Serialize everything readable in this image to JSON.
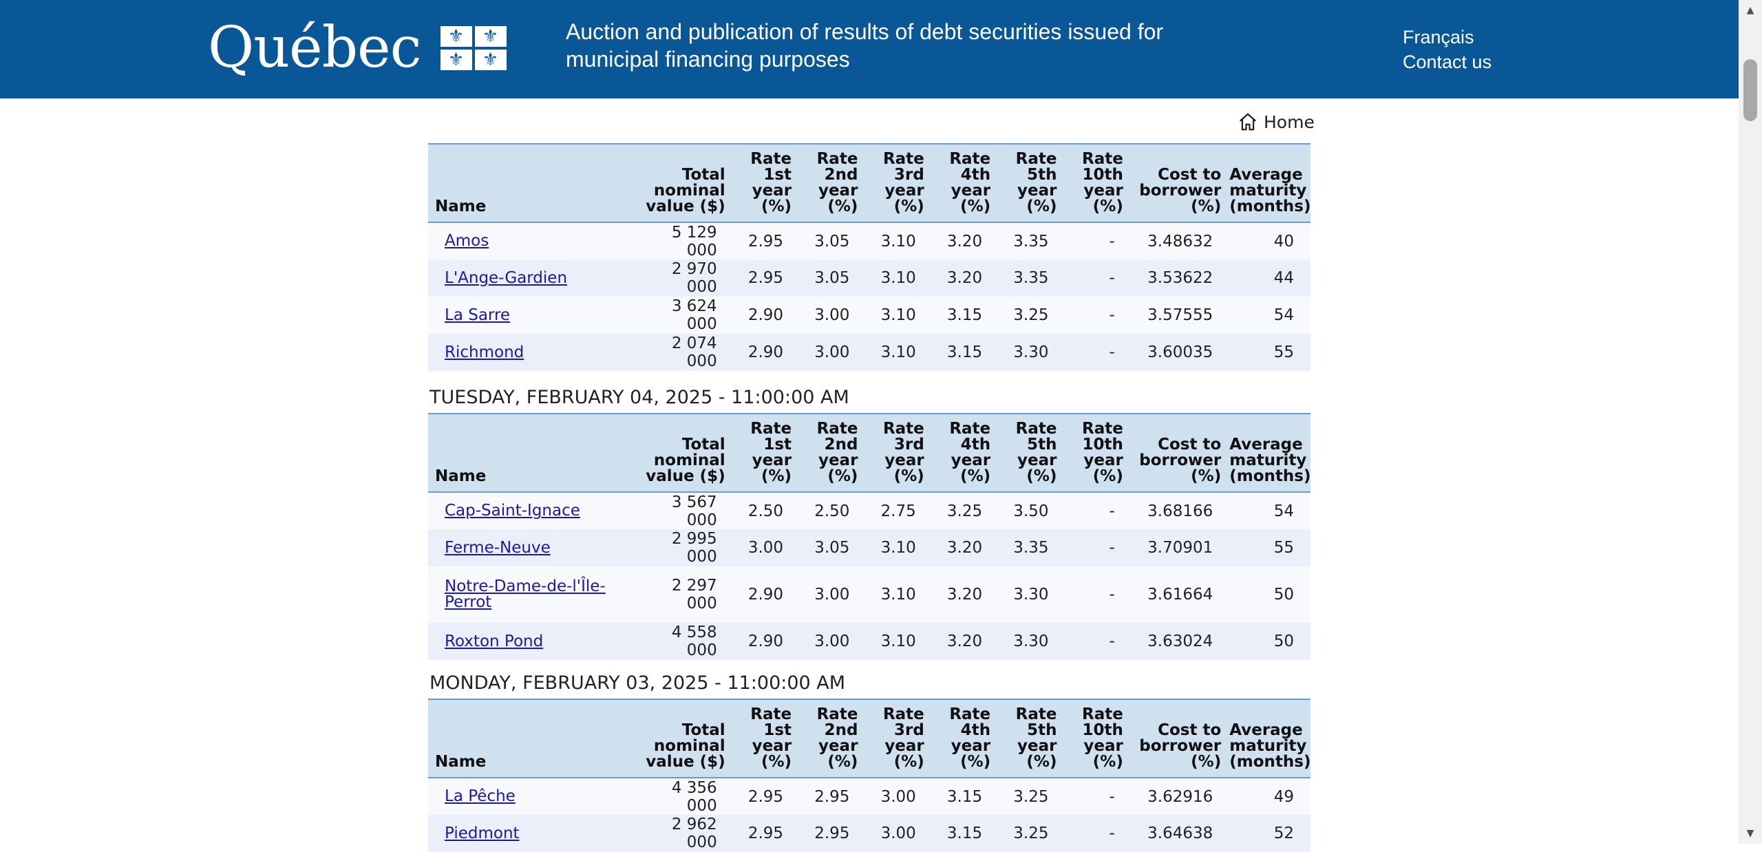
{
  "header": {
    "logo_text": "Québec",
    "title": "Auction and publication of results of debt securities issued for municipal financing purposes",
    "links": [
      "Français",
      "Contact us"
    ]
  },
  "nav": {
    "home_label": "Home"
  },
  "columns": {
    "name": "Name",
    "total": "Total nominal value ($)",
    "rate1": "Rate 1st year (%)",
    "rate2": "Rate 2nd year (%)",
    "rate3": "Rate 3rd year (%)",
    "rate4": "Rate 4th year (%)",
    "rate5": "Rate 5th year (%)",
    "rate10": "Rate 10th year (%)",
    "cost": "Cost to borrower (%)",
    "maturity": "Average maturity (months)"
  },
  "sections": [
    {
      "title": "",
      "rows": [
        {
          "name": "Amos",
          "total": "5 129 000",
          "r1": "2.95",
          "r2": "3.05",
          "r3": "3.10",
          "r4": "3.20",
          "r5": "3.35",
          "r10": "-",
          "cost": "3.48632",
          "maturity": "40"
        },
        {
          "name": "L'Ange-Gardien",
          "total": "2 970 000",
          "r1": "2.95",
          "r2": "3.05",
          "r3": "3.10",
          "r4": "3.20",
          "r5": "3.35",
          "r10": "-",
          "cost": "3.53622",
          "maturity": "44"
        },
        {
          "name": "La Sarre",
          "total": "3 624 000",
          "r1": "2.90",
          "r2": "3.00",
          "r3": "3.10",
          "r4": "3.15",
          "r5": "3.25",
          "r10": "-",
          "cost": "3.57555",
          "maturity": "54"
        },
        {
          "name": "Richmond",
          "total": "2 074 000",
          "r1": "2.90",
          "r2": "3.00",
          "r3": "3.10",
          "r4": "3.15",
          "r5": "3.30",
          "r10": "-",
          "cost": "3.60035",
          "maturity": "55"
        }
      ]
    },
    {
      "title": "TUESDAY, FEBRUARY 04, 2025 - 11:00:00 AM",
      "rows": [
        {
          "name": "Cap-Saint-Ignace",
          "total": "3 567 000",
          "r1": "2.50",
          "r2": "2.50",
          "r3": "2.75",
          "r4": "3.25",
          "r5": "3.50",
          "r10": "-",
          "cost": "3.68166",
          "maturity": "54"
        },
        {
          "name": "Ferme-Neuve",
          "total": "2 995 000",
          "r1": "3.00",
          "r2": "3.05",
          "r3": "3.10",
          "r4": "3.20",
          "r5": "3.35",
          "r10": "-",
          "cost": "3.70901",
          "maturity": "55"
        },
        {
          "name": "Notre-Dame-de-l'Île-Perrot",
          "total": "2 297 000",
          "r1": "2.90",
          "r2": "3.00",
          "r3": "3.10",
          "r4": "3.20",
          "r5": "3.30",
          "r10": "-",
          "cost": "3.61664",
          "maturity": "50"
        },
        {
          "name": "Roxton Pond",
          "total": "4 558 000",
          "r1": "2.90",
          "r2": "3.00",
          "r3": "3.10",
          "r4": "3.20",
          "r5": "3.30",
          "r10": "-",
          "cost": "3.63024",
          "maturity": "50"
        }
      ]
    },
    {
      "title": "MONDAY, FEBRUARY 03, 2025 - 11:00:00 AM",
      "rows": [
        {
          "name": "La Pêche",
          "total": "4 356 000",
          "r1": "2.95",
          "r2": "2.95",
          "r3": "3.00",
          "r4": "3.15",
          "r5": "3.25",
          "r10": "-",
          "cost": "3.62916",
          "maturity": "49"
        },
        {
          "name": "Piedmont",
          "total": "2 962 000",
          "r1": "2.95",
          "r2": "2.95",
          "r3": "3.00",
          "r4": "3.15",
          "r5": "3.25",
          "r10": "-",
          "cost": "3.64638",
          "maturity": "52"
        }
      ]
    }
  ]
}
